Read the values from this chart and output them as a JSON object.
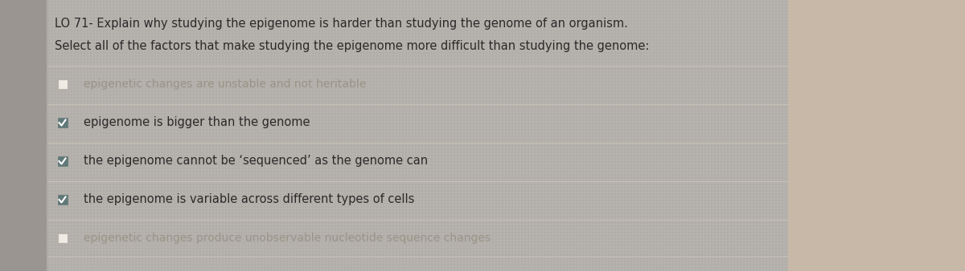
{
  "title_line1": "LO 71- Explain why studying the epigenome is harder than studying the genome of an organism.",
  "title_line2": "Select all of the factors that make studying the epigenome more difficult than studying the genome:",
  "options": [
    "epigenetic changes are unstable and not heritable",
    "epigenome is bigger than the genome",
    "the epigenome cannot be ‘sequenced’ as the genome can",
    "the epigenome is variable across different types of cells",
    "epigenetic changes produce unobservable nucleotide sequence changes"
  ],
  "checked": [
    false,
    true,
    true,
    true,
    false
  ],
  "bg_color": "#b0aca8",
  "panel_bg_color": "#e8e2d8",
  "panel_edge_color": "#c8c2b8",
  "title_color": "#2a2a2a",
  "checked_text_color": "#2a2a2a",
  "unchecked_text_color": "#9a9488",
  "checkbox_checked_color": "#607878",
  "checkbox_unchecked_border": "#b8b2a8",
  "divider_color": "#c8c2b8",
  "font_size_title": 10.5,
  "font_size_option": 10.5
}
